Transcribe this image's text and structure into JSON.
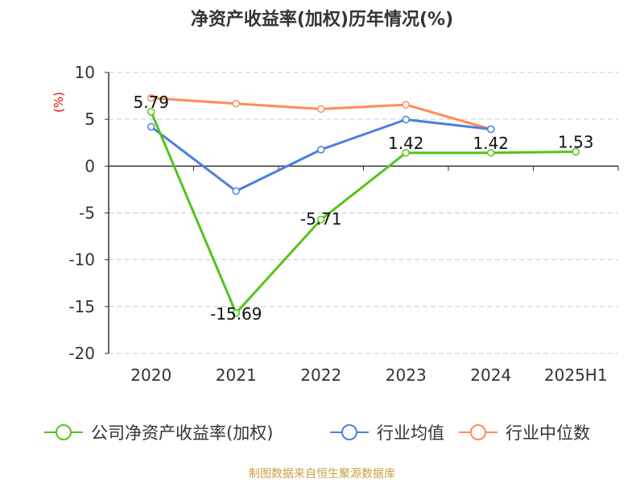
{
  "chart_data": {
    "type": "line",
    "title": "净资产收益率(加权)历年情况(%)",
    "ylabel": "(%)",
    "xlabel": "",
    "categories": [
      "2020",
      "2021",
      "2022",
      "2023",
      "2024",
      "2025H1"
    ],
    "ylim": [
      -20,
      10
    ],
    "yticks": [
      10,
      5,
      0,
      -5,
      -10,
      -15,
      -20
    ],
    "grid": true,
    "legend_position": "bottom",
    "series": [
      {
        "name": "公司净资产收益率(加权)",
        "color": "#52c41a",
        "values": [
          5.79,
          -15.69,
          -5.71,
          1.42,
          1.42,
          1.53
        ],
        "data_labels": [
          "5.79",
          "-15.69",
          "-5.71",
          "1.42",
          "1.42",
          "1.53"
        ]
      },
      {
        "name": "行业均值",
        "color": "#4a7fe0",
        "values": [
          4.2,
          -2.67,
          1.76,
          4.97,
          3.94,
          null
        ]
      },
      {
        "name": "行业中位数",
        "color": "#ff8c55",
        "values": [
          7.27,
          6.67,
          6.1,
          6.55,
          3.94,
          null
        ]
      }
    ]
  },
  "footer": "制图数据来自恒生聚源数据库"
}
